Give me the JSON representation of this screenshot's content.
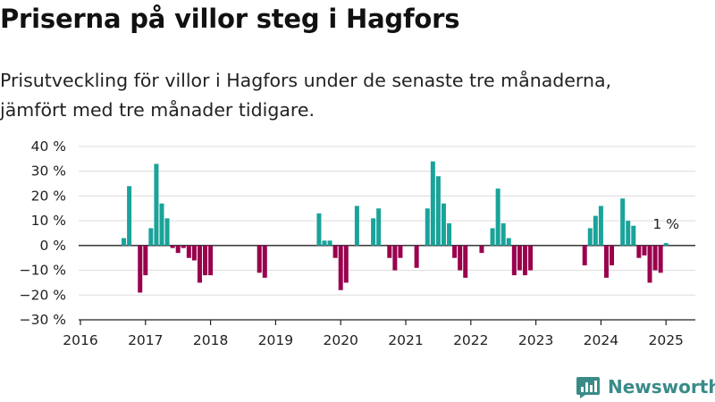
{
  "title": "Priserna på villor steg i Hagfors",
  "subtitle": "Prisutveckling för villor i Hagfors under de senaste tre månaderna, jämfört med tre månader tidigare.",
  "brand": "Newsworthy",
  "colors": {
    "positive": "#1aa39a",
    "negative": "#99004d",
    "brand": "#3a8b88"
  },
  "chart_data": {
    "type": "bar",
    "title": "",
    "xlabel": "",
    "ylabel": "",
    "ylim": [
      -30,
      40
    ],
    "yticks": [
      -30,
      -20,
      -10,
      0,
      10,
      20,
      30,
      40
    ],
    "ytick_labels": [
      "−30 %",
      "−20 %",
      "−10 %",
      "0 %",
      "10 %",
      "20 %",
      "30 %",
      "40 %"
    ],
    "xlim": [
      "2016-01",
      "2025-06"
    ],
    "xtick_labels": [
      "2016",
      "2017",
      "2018",
      "2019",
      "2020",
      "2021",
      "2022",
      "2023",
      "2024",
      "2025"
    ],
    "grid": true,
    "annotation": "1 %",
    "x": [
      "2016-09",
      "2016-10",
      "2016-12",
      "2017-01",
      "2017-02",
      "2017-03",
      "2017-04",
      "2017-05",
      "2017-06",
      "2017-07",
      "2017-08",
      "2017-09",
      "2017-10",
      "2017-11",
      "2017-12",
      "2018-01",
      "2018-10",
      "2018-11",
      "2019-09",
      "2019-10",
      "2019-11",
      "2019-12",
      "2020-01",
      "2020-02",
      "2020-04",
      "2020-07",
      "2020-08",
      "2020-10",
      "2020-11",
      "2020-12",
      "2021-03",
      "2021-05",
      "2021-06",
      "2021-07",
      "2021-08",
      "2021-09",
      "2021-10",
      "2021-11",
      "2021-12",
      "2022-03",
      "2022-05",
      "2022-06",
      "2022-07",
      "2022-08",
      "2022-09",
      "2022-10",
      "2022-11",
      "2022-12",
      "2023-10",
      "2023-11",
      "2023-12",
      "2024-01",
      "2024-02",
      "2024-03",
      "2024-05",
      "2024-06",
      "2024-07",
      "2024-08",
      "2024-09",
      "2024-10",
      "2024-11",
      "2024-12",
      "2025-01"
    ],
    "values": [
      3,
      24,
      -19,
      -12,
      7,
      33,
      17,
      11,
      -1,
      -3,
      -1,
      -5,
      -6,
      -15,
      -12,
      -12,
      -11,
      -13,
      13,
      2,
      2,
      -5,
      -18,
      -15,
      16,
      11,
      15,
      -5,
      -10,
      -5,
      -9,
      15,
      34,
      28,
      17,
      9,
      -5,
      -10,
      -13,
      -3,
      7,
      23,
      9,
      3,
      -12,
      -10,
      -12,
      -10,
      -8,
      7,
      12,
      16,
      -13,
      -8,
      19,
      10,
      8,
      -5,
      -4,
      -15,
      -10,
      -11,
      1
    ]
  }
}
